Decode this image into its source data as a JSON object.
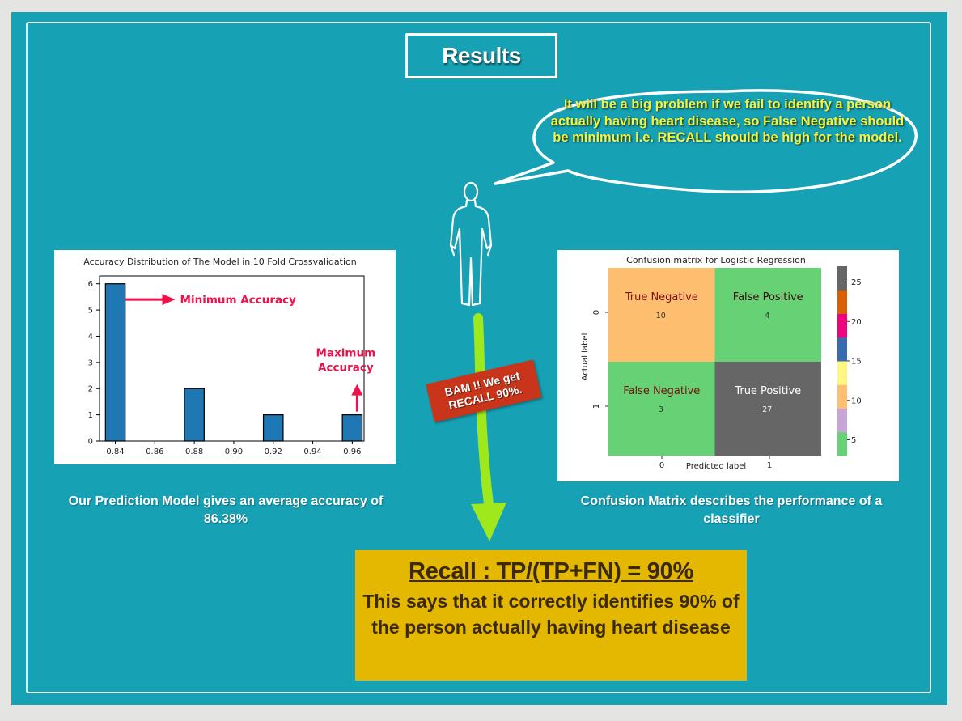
{
  "slide": {
    "title": "Results",
    "speech_bubble": "It will be a big problem if we fail to identify a person actually having heart disease, so False Negative should be minimum i.e. RECALL should be high for the model.",
    "bam_tag": "BAM !! We get RECALL 90%.",
    "caption_left": "Our Prediction Model gives an average accuracy of 86.38%",
    "caption_right": "Confusion Matrix describes the performance of a classifier",
    "recall_title": "Recall : TP/(TP+FN) = 90%",
    "recall_desc": "This says that it correctly identifies 90% of the person actually having heart disease",
    "colors": {
      "background": "#17a1b5",
      "bubble_text": "#f4f43a",
      "arrow": "#9ee81c",
      "bam": "#c9351a",
      "recall_box": "#e4b800"
    }
  },
  "chart_data": [
    {
      "type": "bar",
      "title": "Accuracy Distribution of The Model in 10 Fold Crossvalidation",
      "xlabel": "",
      "ylabel": "",
      "x": [
        0.84,
        0.88,
        0.92,
        0.96
      ],
      "values": [
        6,
        2,
        1,
        1
      ],
      "bar_width": 0.01,
      "xlim": [
        0.832,
        0.966
      ],
      "ylim": [
        0,
        6.3
      ],
      "x_ticks": [
        "0.84",
        "0.86",
        "0.88",
        "0.90",
        "0.92",
        "0.94",
        "0.96"
      ],
      "y_ticks": [
        "0",
        "1",
        "2",
        "3",
        "4",
        "5",
        "6"
      ],
      "bar_color": "#1f77b4",
      "annotations": [
        {
          "text": "Minimum Accuracy",
          "points_to": [
            0.84,
            5.4
          ],
          "arrow": "left"
        },
        {
          "text": "Maximum Accuracy",
          "points_to": [
            0.96,
            1.0
          ],
          "arrow": "down"
        }
      ]
    },
    {
      "type": "heatmap",
      "title": "Confusion matrix for Logistic Regression",
      "xlabel": "Predicted label",
      "ylabel": "Actual label",
      "x_ticks": [
        "0",
        "1"
      ],
      "y_ticks": [
        "0",
        "1"
      ],
      "cells": [
        {
          "row": 0,
          "col": 0,
          "label": "True Negative",
          "value": "10",
          "color": "#fdbf6f",
          "label_color": "#7a1010"
        },
        {
          "row": 0,
          "col": 1,
          "label": "False Positive",
          "value": "4",
          "color": "#66d175",
          "label_color": "#3a0a0a"
        },
        {
          "row": 1,
          "col": 0,
          "label": "False Negative",
          "value": "3",
          "color": "#66d175",
          "label_color": "#7a1010"
        },
        {
          "row": 1,
          "col": 1,
          "label": "True Positive",
          "value": "27",
          "color": "#666666",
          "label_color": "#ffffff"
        }
      ],
      "colorbar": {
        "ticks": [
          "5",
          "10",
          "15",
          "20",
          "25"
        ],
        "colors": [
          "#66d175",
          "#c5a6d4",
          "#fdbf6f",
          "#fff880",
          "#386cb0",
          "#f0027f",
          "#d95f02",
          "#666666"
        ]
      }
    }
  ]
}
